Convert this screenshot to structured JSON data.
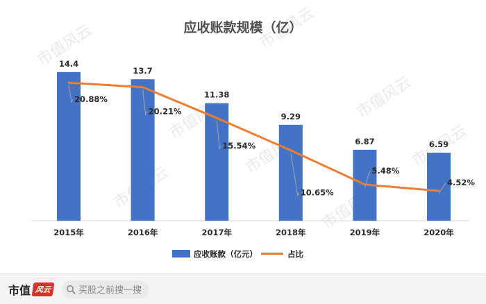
{
  "chart_data": {
    "type": "bar",
    "title": "应收账款规模（亿）",
    "categories": [
      "2015年",
      "2016年",
      "2017年",
      "2018年",
      "2019年",
      "2020年"
    ],
    "series": [
      {
        "name": "应收账款（亿元）",
        "type": "bar",
        "color": "#4472c4",
        "values": [
          14.4,
          13.7,
          11.38,
          9.29,
          6.87,
          6.59
        ],
        "labels": [
          "14.4",
          "13.7",
          "11.38",
          "9.29",
          "6.87",
          "6.59"
        ]
      },
      {
        "name": "占比",
        "type": "line",
        "color": "#ed7d31",
        "values": [
          20.88,
          20.21,
          15.54,
          10.65,
          5.48,
          4.52
        ],
        "labels": [
          "20.88%",
          "20.21%",
          "15.54%",
          "10.65%",
          "5.48%",
          "4.52%"
        ]
      }
    ],
    "ylim_bar": [
      0,
      16
    ],
    "ylim_line": [
      0,
      25
    ],
    "legend_position": "bottom",
    "grid": false
  },
  "watermark": "市值风云",
  "footer": {
    "brand": "市值",
    "brand_badge": "风云",
    "search_placeholder": "买股之前搜一搜"
  },
  "colors": {
    "bar": "#4472c4",
    "line": "#ed7d31",
    "brand_red": "#d9312b"
  },
  "icons": {
    "search": "search-icon"
  }
}
